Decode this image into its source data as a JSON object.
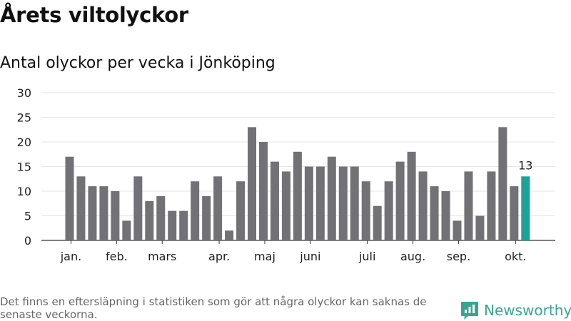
{
  "title": "Årets viltolyckor",
  "subtitle": "Antal olyckor per vecka i Jönköping",
  "footnote": "Det finns en eftersläpning i statistiken som gör att några olyckor kan saknas de senaste veckorna.",
  "brand": "Newsworthy",
  "colors": {
    "bar": "#727176",
    "highlight": "#1aa396",
    "grid": "#e6e6e6",
    "axis": "#333333",
    "brand": "#3aa491"
  },
  "chart_data": {
    "type": "bar",
    "values": [
      17,
      13,
      11,
      11,
      10,
      4,
      13,
      8,
      9,
      6,
      6,
      12,
      9,
      13,
      2,
      12,
      23,
      20,
      16,
      14,
      18,
      15,
      15,
      17,
      15,
      15,
      12,
      7,
      12,
      16,
      18,
      14,
      11,
      10,
      4,
      14,
      5,
      14,
      23,
      11,
      13
    ],
    "highlight_index": 40,
    "highlight_label": "13",
    "ylim": [
      0,
      30
    ],
    "yticks": [
      "0",
      "5",
      "10",
      "15",
      "20",
      "25",
      "30"
    ],
    "month_labels": [
      {
        "label": "jan.",
        "at_bar": 0.5
      },
      {
        "label": "feb.",
        "at_bar": 4.5
      },
      {
        "label": "mars",
        "at_bar": 8.5
      },
      {
        "label": "apr.",
        "at_bar": 13.5
      },
      {
        "label": "maj",
        "at_bar": 17.5
      },
      {
        "label": "juni",
        "at_bar": 21.5
      },
      {
        "label": "juli",
        "at_bar": 26.5
      },
      {
        "label": "aug.",
        "at_bar": 30.5
      },
      {
        "label": "sep.",
        "at_bar": 34.5
      },
      {
        "label": "okt.",
        "at_bar": 39.5
      }
    ],
    "grid": true
  }
}
